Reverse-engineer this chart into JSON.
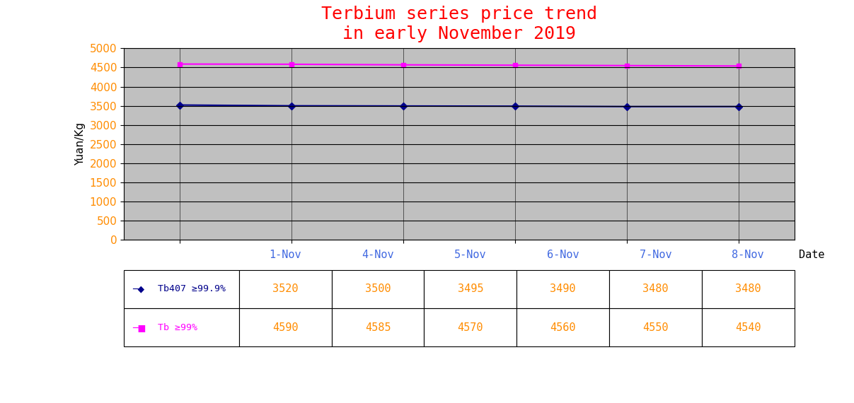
{
  "title": "Terbium series price trend\nin early November 2019",
  "ylabel": "Yuan/Kg",
  "xlabel": "Date",
  "dates": [
    "1-Nov",
    "4-Nov",
    "5-Nov",
    "6-Nov",
    "7-Nov",
    "8-Nov"
  ],
  "series": [
    {
      "label": "Tb407 ≥99.9%",
      "values": [
        3520,
        3500,
        3495,
        3490,
        3480,
        3480
      ],
      "color": "#00008B",
      "marker": "D",
      "marker_color": "#00008B"
    },
    {
      "label": "Tb ≥99%",
      "values": [
        4590,
        4585,
        4570,
        4560,
        4550,
        4540
      ],
      "color": "#FF00FF",
      "marker": "s",
      "marker_color": "#FF00FF"
    }
  ],
  "ylim": [
    0,
    5000
  ],
  "yticks": [
    0,
    500,
    1000,
    1500,
    2000,
    2500,
    3000,
    3500,
    4000,
    4500,
    5000
  ],
  "title_color": "#FF0000",
  "axis_bg_color": "#C0C0C0",
  "fig_bg_color": "#FFFFFF",
  "table_text_color": "#FF8C00",
  "date_text_color": "#4169E1",
  "grid_color": "#000000",
  "title_fontsize": 18,
  "tick_fontsize": 11,
  "label_fontsize": 11,
  "table_fontsize": 11
}
